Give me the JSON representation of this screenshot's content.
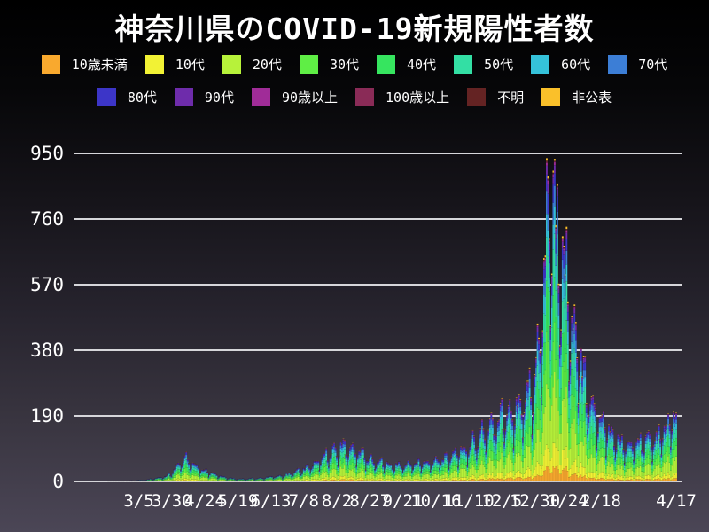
{
  "title": "神奈川県のCOVID-19新規陽性者数",
  "colors": {
    "background_top": "#000000",
    "background_bottom": "#4b4656",
    "grid": "#d6d6da",
    "text": "#ffffff"
  },
  "chart_data": {
    "type": "bar",
    "stacked": true,
    "title": "神奈川県のCOVID-19新規陽性者数",
    "xlabel": "",
    "ylabel": "",
    "grid": true,
    "legend_position": "top",
    "ylim": [
      0,
      1000
    ],
    "y_ticks": [
      0,
      190,
      380,
      570,
      760,
      950
    ],
    "days": 456,
    "x_ticks": [
      {
        "day": 48,
        "label": "3/5"
      },
      {
        "day": 73,
        "label": "3/30"
      },
      {
        "day": 98,
        "label": "4/24"
      },
      {
        "day": 123,
        "label": "5/19"
      },
      {
        "day": 148,
        "label": "6/13"
      },
      {
        "day": 173,
        "label": "7/8"
      },
      {
        "day": 198,
        "label": "8/2"
      },
      {
        "day": 223,
        "label": "8/27"
      },
      {
        "day": 248,
        "label": "9/21"
      },
      {
        "day": 273,
        "label": "10/16"
      },
      {
        "day": 298,
        "label": "11/10"
      },
      {
        "day": 323,
        "label": "12/5"
      },
      {
        "day": 348,
        "label": "12/30"
      },
      {
        "day": 373,
        "label": "1/24"
      },
      {
        "day": 398,
        "label": "2/18"
      },
      {
        "day": 455,
        "label": "4/17"
      }
    ],
    "groups": [
      {
        "name": "10歳未満",
        "color": "#f9a92e",
        "fraction": 0.045
      },
      {
        "name": "10代",
        "color": "#f2f234",
        "fraction": 0.075
      },
      {
        "name": "20代",
        "color": "#b7f23a",
        "fraction": 0.21
      },
      {
        "name": "30代",
        "color": "#5fee45",
        "fraction": 0.155
      },
      {
        "name": "40代",
        "color": "#36e55f",
        "fraction": 0.14
      },
      {
        "name": "50代",
        "color": "#33dfa4",
        "fraction": 0.125
      },
      {
        "name": "60代",
        "color": "#35c2da",
        "fraction": 0.08
      },
      {
        "name": "70代",
        "color": "#3c7ed6",
        "fraction": 0.065
      },
      {
        "name": "80代",
        "color": "#3c35c8",
        "fraction": 0.055
      },
      {
        "name": "90代",
        "color": "#6e2cab",
        "fraction": 0.025
      },
      {
        "name": "90歳以上",
        "color": "#a02c98",
        "fraction": 0.008
      },
      {
        "name": "100歳以上",
        "color": "#8a2b57",
        "fraction": 0.003
      },
      {
        "name": "不明",
        "color": "#642323",
        "fraction": 0.003
      },
      {
        "name": "非公表",
        "color": "#fac02a",
        "fraction": 0.007
      }
    ],
    "legend_rows": [
      8,
      6
    ],
    "total_anchors": [
      [
        0,
        0
      ],
      [
        20,
        0
      ],
      [
        25,
        1
      ],
      [
        40,
        2
      ],
      [
        48,
        3
      ],
      [
        55,
        5
      ],
      [
        62,
        9
      ],
      [
        68,
        14
      ],
      [
        72,
        22
      ],
      [
        76,
        35
      ],
      [
        80,
        55
      ],
      [
        83,
        68
      ],
      [
        86,
        60
      ],
      [
        90,
        48
      ],
      [
        94,
        38
      ],
      [
        100,
        28
      ],
      [
        106,
        20
      ],
      [
        112,
        13
      ],
      [
        118,
        9
      ],
      [
        126,
        7
      ],
      [
        134,
        8
      ],
      [
        142,
        10
      ],
      [
        150,
        14
      ],
      [
        158,
        18
      ],
      [
        164,
        24
      ],
      [
        170,
        31
      ],
      [
        176,
        40
      ],
      [
        182,
        52
      ],
      [
        188,
        68
      ],
      [
        194,
        82
      ],
      [
        199,
        95
      ],
      [
        203,
        100
      ],
      [
        207,
        92
      ],
      [
        212,
        86
      ],
      [
        217,
        77
      ],
      [
        222,
        66
      ],
      [
        228,
        58
      ],
      [
        234,
        52
      ],
      [
        240,
        48
      ],
      [
        247,
        45
      ],
      [
        254,
        48
      ],
      [
        261,
        52
      ],
      [
        268,
        55
      ],
      [
        275,
        60
      ],
      [
        282,
        68
      ],
      [
        289,
        80
      ],
      [
        296,
        95
      ],
      [
        302,
        115
      ],
      [
        308,
        135
      ],
      [
        314,
        155
      ],
      [
        320,
        170
      ],
      [
        326,
        185
      ],
      [
        332,
        200
      ],
      [
        338,
        215
      ],
      [
        344,
        245
      ],
      [
        348,
        300
      ],
      [
        351,
        400
      ],
      [
        354,
        520
      ],
      [
        356,
        650
      ],
      [
        358,
        830
      ],
      [
        360,
        800
      ],
      [
        362,
        760
      ],
      [
        364,
        720
      ],
      [
        367,
        660
      ],
      [
        370,
        590
      ],
      [
        373,
        520
      ],
      [
        377,
        430
      ],
      [
        381,
        360
      ],
      [
        385,
        300
      ],
      [
        390,
        240
      ],
      [
        395,
        195
      ],
      [
        400,
        160
      ],
      [
        405,
        135
      ],
      [
        410,
        118
      ],
      [
        415,
        105
      ],
      [
        420,
        100
      ],
      [
        425,
        102
      ],
      [
        430,
        108
      ],
      [
        435,
        115
      ],
      [
        440,
        125
      ],
      [
        444,
        138
      ],
      [
        448,
        152
      ],
      [
        452,
        170
      ],
      [
        455,
        185
      ]
    ],
    "weekday_multipliers": [
      1.18,
      1.2,
      0.92,
      0.55,
      0.8,
      1.05,
      1.12
    ],
    "jitter": {
      "min": 0.86,
      "range": 0.28
    },
    "fraction_jitter": {
      "min": 0.75,
      "range": 0.5
    },
    "clamp_max": 996
  }
}
